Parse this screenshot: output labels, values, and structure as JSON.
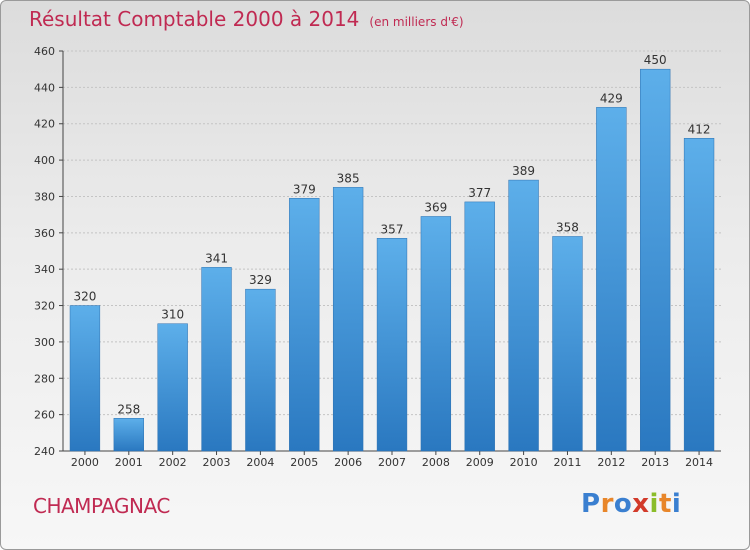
{
  "chart_data": {
    "type": "bar",
    "title": "Résultat Comptable 2000 à 2014",
    "subtitle": "(en milliers d'€)",
    "categories": [
      "2000",
      "2001",
      "2002",
      "2003",
      "2004",
      "2005",
      "2006",
      "2007",
      "2008",
      "2009",
      "2010",
      "2011",
      "2012",
      "2013",
      "2014"
    ],
    "values": [
      320,
      258,
      310,
      341,
      329,
      379,
      385,
      357,
      369,
      377,
      389,
      358,
      429,
      450,
      412
    ],
    "ylim": [
      240,
      460
    ],
    "yticks": [
      240,
      260,
      280,
      300,
      320,
      340,
      360,
      380,
      400,
      420,
      440,
      460
    ],
    "grid": true,
    "bar_color": "#4a9fe0"
  },
  "commune": "CHAMPAGNAC",
  "logo": {
    "letters": [
      "P",
      "r",
      "o",
      "x",
      "i",
      "t",
      "i"
    ],
    "colors": [
      "#3a7fd0",
      "#e8862a",
      "#3a7fd0",
      "#d23a2a",
      "#8bbd2a",
      "#e8862a",
      "#3a7fd0"
    ]
  }
}
